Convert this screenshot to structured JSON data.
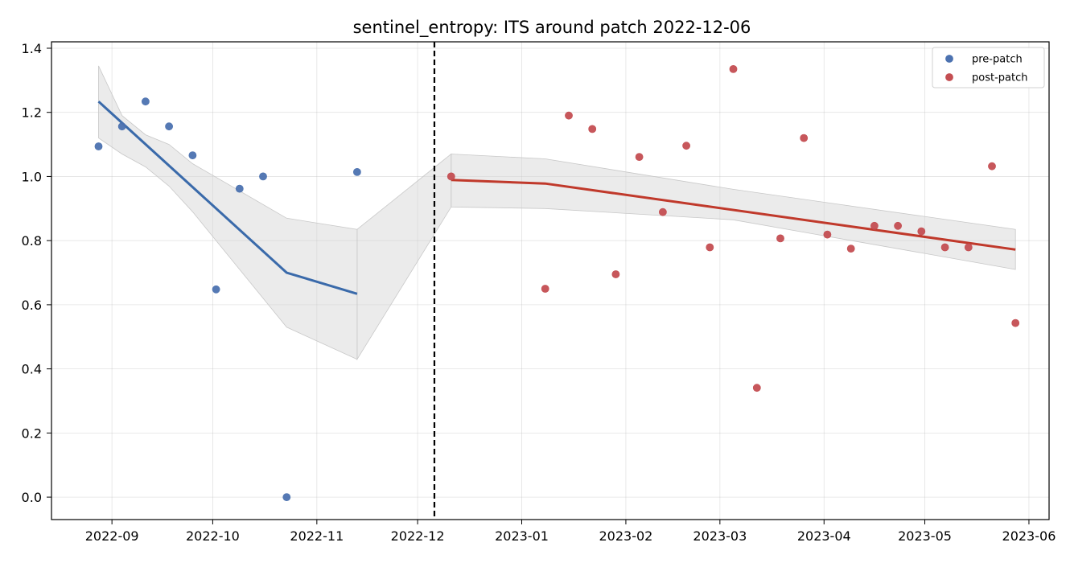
{
  "chart_data": {
    "type": "scatter",
    "title": "sentinel_entropy: ITS around patch 2022-12-06",
    "xlabel": "",
    "ylabel": "",
    "x_scale": "date",
    "xlim": [
      "2022-08-14",
      "2023-06-07"
    ],
    "ylim": [
      -0.07,
      1.42
    ],
    "x_ticks": [
      "2022-09-01",
      "2022-10-01",
      "2022-11-01",
      "2022-12-01",
      "2023-01-01",
      "2023-02-01",
      "2023-03-01",
      "2023-04-01",
      "2023-05-01",
      "2023-06-01"
    ],
    "x_tick_labels": [
      "2022-09",
      "2022-10",
      "2022-11",
      "2022-12",
      "2023-01",
      "2023-02",
      "2023-03",
      "2023-04",
      "2023-05",
      "2023-06"
    ],
    "y_ticks": [
      0.0,
      0.2,
      0.4,
      0.6,
      0.8,
      1.0,
      1.2,
      1.4
    ],
    "y_tick_labels": [
      "0.0",
      "0.2",
      "0.4",
      "0.6",
      "0.8",
      "1.0",
      "1.2",
      "1.4"
    ],
    "grid": true,
    "legend_position": "top-right",
    "patch_date": "2022-12-06",
    "series": [
      {
        "name": "pre-patch",
        "color": "#4c72b0",
        "points": [
          {
            "x": "2022-08-28",
            "y": 1.094
          },
          {
            "x": "2022-09-04",
            "y": 1.156
          },
          {
            "x": "2022-09-11",
            "y": 1.234
          },
          {
            "x": "2022-09-18",
            "y": 1.156
          },
          {
            "x": "2022-09-25",
            "y": 1.066
          },
          {
            "x": "2022-10-02",
            "y": 0.648
          },
          {
            "x": "2022-10-09",
            "y": 0.962
          },
          {
            "x": "2022-10-16",
            "y": 1.0
          },
          {
            "x": "2022-10-23",
            "y": 0.0
          },
          {
            "x": "2022-11-13",
            "y": 1.014
          }
        ]
      },
      {
        "name": "post-patch",
        "color": "#c44e52",
        "points": [
          {
            "x": "2022-12-11",
            "y": 1.0
          },
          {
            "x": "2023-01-08",
            "y": 0.65
          },
          {
            "x": "2023-01-15",
            "y": 1.19
          },
          {
            "x": "2023-01-22",
            "y": 1.148
          },
          {
            "x": "2023-01-29",
            "y": 0.695
          },
          {
            "x": "2023-02-05",
            "y": 1.061
          },
          {
            "x": "2023-02-12",
            "y": 0.889
          },
          {
            "x": "2023-02-19",
            "y": 1.096
          },
          {
            "x": "2023-02-26",
            "y": 0.779
          },
          {
            "x": "2023-03-05",
            "y": 1.335
          },
          {
            "x": "2023-03-12",
            "y": 0.341
          },
          {
            "x": "2023-03-19",
            "y": 0.807
          },
          {
            "x": "2023-03-26",
            "y": 1.12
          },
          {
            "x": "2023-04-02",
            "y": 0.819
          },
          {
            "x": "2023-04-09",
            "y": 0.775
          },
          {
            "x": "2023-04-16",
            "y": 0.846
          },
          {
            "x": "2023-04-23",
            "y": 0.846
          },
          {
            "x": "2023-04-30",
            "y": 0.829
          },
          {
            "x": "2023-05-07",
            "y": 0.779
          },
          {
            "x": "2023-05-14",
            "y": 0.779
          },
          {
            "x": "2023-05-21",
            "y": 1.032
          },
          {
            "x": "2023-05-28",
            "y": 0.543
          }
        ]
      }
    ],
    "fits": [
      {
        "series": "pre-patch",
        "color": "#3a6aaa",
        "x": [
          "2022-08-28",
          "2022-10-23",
          "2022-11-13"
        ],
        "y": [
          1.234,
          0.7,
          0.634
        ],
        "band_x": [
          "2022-08-28",
          "2022-09-04",
          "2022-09-11",
          "2022-09-18",
          "2022-09-25",
          "2022-10-23",
          "2022-11-13"
        ],
        "band_upper": [
          1.345,
          1.19,
          1.13,
          1.1,
          1.04,
          0.87,
          0.835
        ],
        "band_lower": [
          1.12,
          1.07,
          1.03,
          0.97,
          0.89,
          0.53,
          0.43
        ]
      },
      {
        "series": "post-patch",
        "color": "#c0392b",
        "x": [
          "2022-12-11",
          "2023-01-08",
          "2023-05-28"
        ],
        "y": [
          0.989,
          0.978,
          0.772
        ],
        "band_x": [
          "2022-12-11",
          "2023-01-08",
          "2023-03-05",
          "2023-05-28"
        ],
        "band_upper": [
          1.07,
          1.055,
          0.96,
          0.835
        ],
        "band_lower": [
          0.905,
          0.9,
          0.865,
          0.71
        ]
      }
    ],
    "gap_band": {
      "x": [
        "2022-11-13",
        "2022-12-11"
      ],
      "upper": [
        0.835,
        1.07
      ],
      "lower": [
        0.43,
        0.905
      ]
    }
  }
}
